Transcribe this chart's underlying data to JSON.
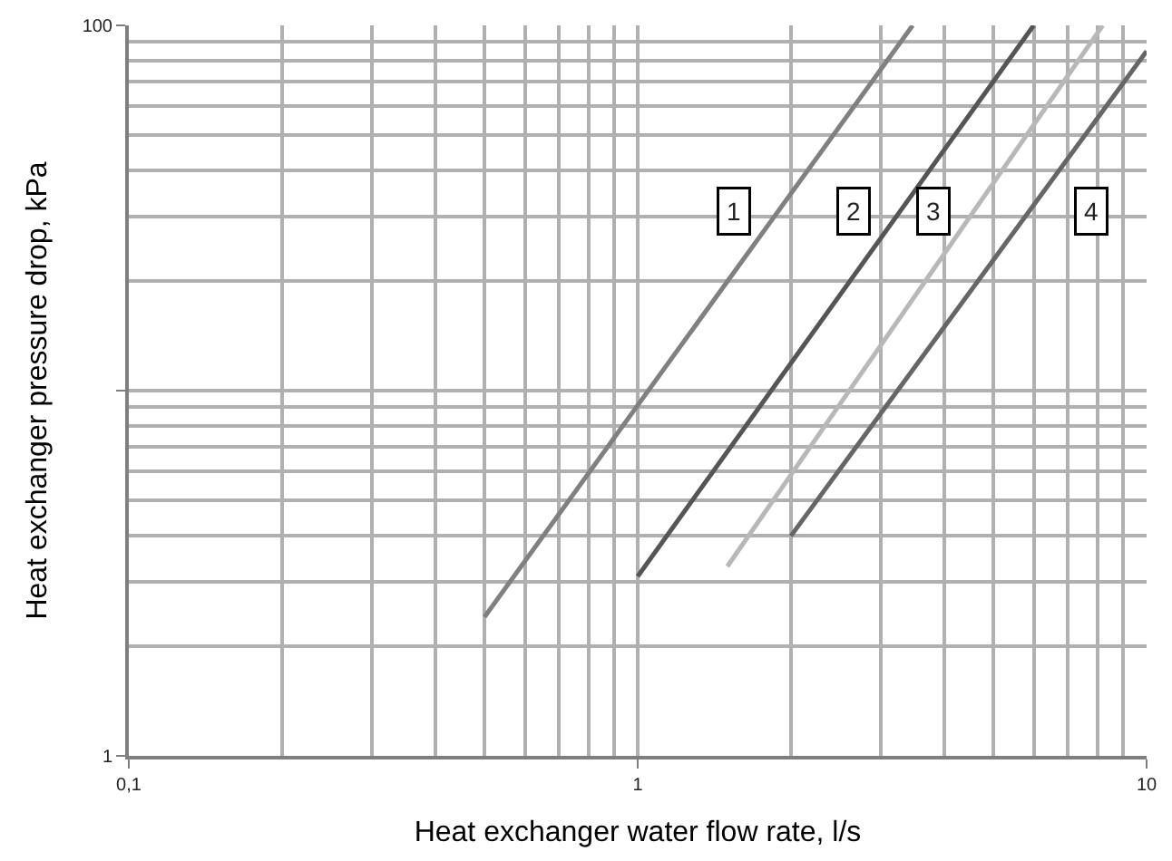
{
  "chart_data": {
    "type": "line",
    "xlabel": "Heat exchanger water flow rate, l/s",
    "ylabel": "Heat exchanger pressure drop, kPa",
    "log": "xy",
    "grid": true,
    "marker": "none",
    "line_style": "solid",
    "xlim": [
      0.1,
      10
    ],
    "ylim": [
      1,
      100
    ],
    "xticks": [
      {
        "value": 0.1,
        "label": "0,1"
      },
      1,
      10
    ],
    "yticks": [
      1,
      {
        "value": 10,
        "label": null
      },
      100
    ],
    "series": [
      {
        "color": "#808080",
        "x": [
          0.5,
          3.47
        ],
        "values": [
          2.4,
          100
        ]
      },
      {
        "color": "#555555",
        "x": [
          1,
          6.0
        ],
        "values": [
          3.1,
          100
        ]
      },
      {
        "color": "#b8b8b8",
        "x": [
          1.5,
          8.2
        ],
        "values": [
          3.3,
          100
        ]
      },
      {
        "color": "#666666",
        "x": [
          2,
          10
        ],
        "values": [
          4,
          85
        ]
      }
    ],
    "annotations": [
      {
        "text": "1",
        "x": 1.54,
        "y": 31
      },
      {
        "text": "2",
        "x": 2.66,
        "y": 31
      },
      {
        "text": "3",
        "x": 3.8,
        "y": 31
      },
      {
        "text": "4",
        "x": 7.8,
        "y": 31
      }
    ]
  }
}
